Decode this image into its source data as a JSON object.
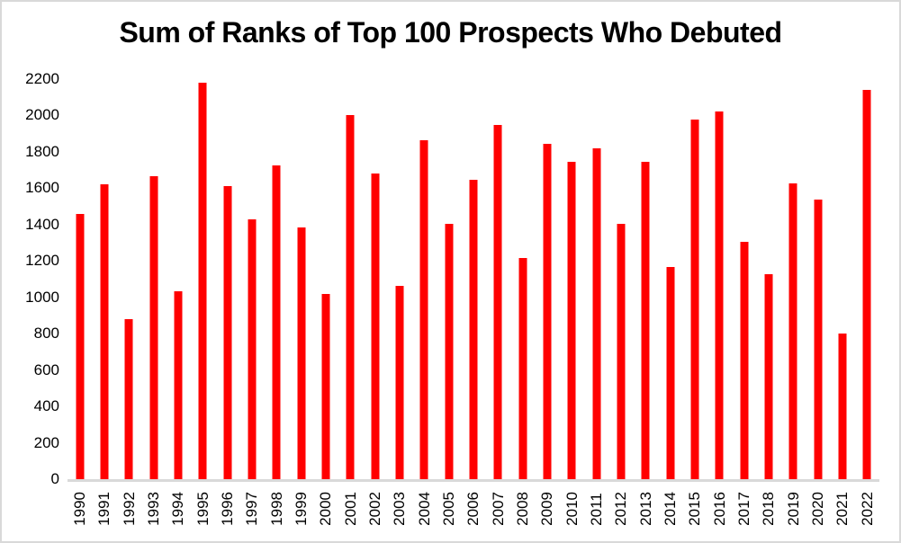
{
  "chart_data": {
    "type": "bar",
    "title": "Sum of Ranks of Top 100 Prospects Who Debuted",
    "categories": [
      "1990",
      "1991",
      "1992",
      "1993",
      "1994",
      "1995",
      "1996",
      "1997",
      "1998",
      "1999",
      "2000",
      "2001",
      "2002",
      "2003",
      "2004",
      "2005",
      "2006",
      "2007",
      "2008",
      "2009",
      "2010",
      "2011",
      "2012",
      "2013",
      "2014",
      "2015",
      "2016",
      "2017",
      "2018",
      "2019",
      "2020",
      "2021",
      "2022"
    ],
    "values": [
      1460,
      1620,
      880,
      1665,
      1035,
      2180,
      1610,
      1430,
      1725,
      1385,
      1020,
      2000,
      1680,
      1065,
      1865,
      1405,
      1645,
      1950,
      1215,
      1845,
      1745,
      1820,
      1405,
      1745,
      1165,
      1980,
      2020,
      1305,
      1125,
      1625,
      1540,
      800,
      2140
    ],
    "xlabel": "",
    "ylabel": "",
    "ylim": [
      0,
      2200
    ],
    "ytick_interval": 200,
    "ytick_labels": [
      "0",
      "200",
      "400",
      "600",
      "800",
      "1000",
      "1200",
      "1400",
      "1600",
      "1800",
      "2000",
      "2200"
    ],
    "grid": false,
    "legend_position": "none",
    "bar_color": "#ff0000",
    "axis_line_color": "#d9d9d9",
    "chart_border_color": "#d9d9d9",
    "background_color": "#ffffff",
    "text_color": "#000000"
  }
}
